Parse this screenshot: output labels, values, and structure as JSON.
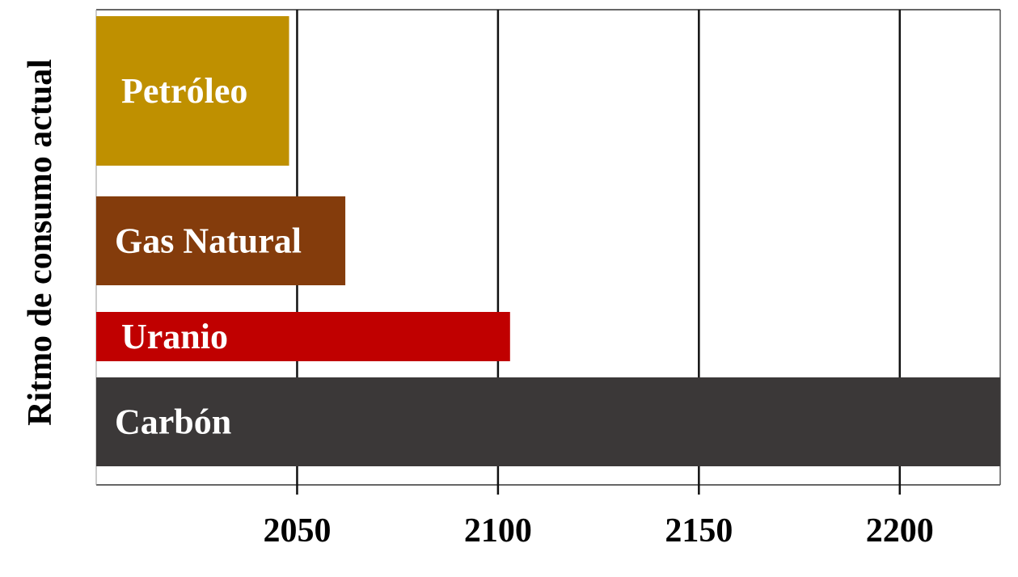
{
  "chart_data": {
    "type": "bar",
    "orientation": "horizontal",
    "ylabel": "Ritmo de consumo actual",
    "xlabel": "",
    "x_ticks": [
      2050,
      2100,
      2150,
      2200
    ],
    "xlim": [
      2000,
      2225
    ],
    "categories": [
      "Petróleo",
      "Gas Natural",
      "Uranio",
      "Carbón"
    ],
    "values": [
      2048,
      2062,
      2103,
      2225
    ],
    "colors": [
      "#BF9000",
      "#843C0C",
      "#C00000",
      "#3B3838"
    ],
    "grid": true,
    "legend": "none"
  }
}
